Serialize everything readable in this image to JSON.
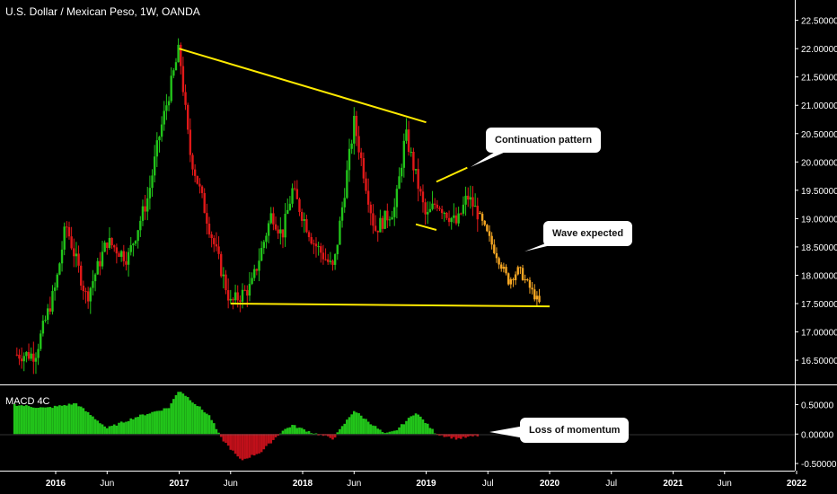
{
  "chart_data": [
    {
      "type": "candlestick",
      "title": "U.S. Dollar / Mexican Peso, 1W, OANDA",
      "y_ticks": [
        "22.50000",
        "22.00000",
        "21.50000",
        "21.00000",
        "20.50000",
        "20.00000",
        "19.50000",
        "19.00000",
        "18.50000",
        "18.00000",
        "17.50000",
        "17.00000",
        "16.50000"
      ],
      "ylim": [
        16.2,
        22.7
      ],
      "x_ticks": [
        "2016",
        "Jun",
        "2017",
        "Jun",
        "2018",
        "Jun",
        "2019",
        "Jul",
        "2020",
        "Jul",
        "2021",
        "Jun",
        "2022"
      ],
      "price_path": [
        [
          "2015-09",
          16.6
        ],
        [
          "2015-11",
          16.6
        ],
        [
          "2016-01",
          17.8
        ],
        [
          "2016-02",
          18.9
        ],
        [
          "2016-04",
          17.6
        ],
        [
          "2016-06",
          18.6
        ],
        [
          "2016-08",
          18.3
        ],
        [
          "2016-10",
          19.4
        ],
        [
          "2016-11",
          20.4
        ],
        [
          "2017-01",
          22.0
        ],
        [
          "2017-02",
          20.2
        ],
        [
          "2017-04",
          18.8
        ],
        [
          "2017-06",
          17.5
        ],
        [
          "2017-08",
          17.8
        ],
        [
          "2017-10",
          19.1
        ],
        [
          "2017-11",
          18.7
        ],
        [
          "2017-12",
          19.5
        ],
        [
          "2018-02",
          18.6
        ],
        [
          "2018-04",
          18.1
        ],
        [
          "2018-06",
          20.7
        ],
        [
          "2018-08",
          18.8
        ],
        [
          "2018-10",
          19.2
        ],
        [
          "2018-11",
          20.5
        ],
        [
          "2019-01",
          19.0
        ],
        [
          "2019-02",
          19.3
        ],
        [
          "2019-04",
          18.9
        ],
        [
          "2019-05",
          19.4
        ],
        [
          "2019-06",
          19.1
        ]
      ],
      "projection": [
        [
          "2019-06",
          19.1
        ],
        [
          "2019-07",
          18.7
        ],
        [
          "2019-08",
          18.3
        ],
        [
          "2019-09",
          17.9
        ],
        [
          "2019-10",
          18.1
        ],
        [
          "2019-11",
          17.8
        ],
        [
          "2019-12",
          17.5
        ]
      ],
      "colors": {
        "up": "#22c41a",
        "down": "#e01818",
        "projection": "#f5a623",
        "trendline": "#ffea00"
      },
      "trendlines": [
        {
          "from": [
            "2017-01",
            22.0
          ],
          "to": [
            "2019-01",
            20.7
          ]
        },
        {
          "from": [
            "2017-06",
            17.5
          ],
          "to": [
            "2020-01",
            17.45
          ]
        },
        {
          "from": [
            "2018-12",
            18.9
          ],
          "to": [
            "2019-02",
            18.8
          ]
        },
        {
          "from": [
            "2019-02",
            19.65
          ],
          "to": [
            "2019-05",
            19.9
          ]
        }
      ]
    },
    {
      "type": "histogram",
      "title": "MACD 4C",
      "y_ticks": [
        "0.50000",
        "0.00000",
        "-0.50000"
      ],
      "ylim": [
        -0.56,
        0.72
      ],
      "colors": {
        "positive": "#22c41a",
        "negative": "#c0101a"
      },
      "path": [
        [
          "2015-09",
          0.5
        ],
        [
          "2015-12",
          0.44
        ],
        [
          "2016-03",
          0.52
        ],
        [
          "2016-06",
          0.1
        ],
        [
          "2016-09",
          0.3
        ],
        [
          "2016-12",
          0.45
        ],
        [
          "2017-01",
          0.75
        ],
        [
          "2017-04",
          0.3
        ],
        [
          "2017-05",
          -0.05
        ],
        [
          "2017-07",
          -0.45
        ],
        [
          "2017-09",
          -0.3
        ],
        [
          "2017-11",
          0.05
        ],
        [
          "2017-12",
          0.15
        ],
        [
          "2018-02",
          0.02
        ],
        [
          "2018-04",
          -0.08
        ],
        [
          "2018-06",
          0.4
        ],
        [
          "2018-09",
          0.0
        ],
        [
          "2018-10",
          0.05
        ],
        [
          "2018-12",
          0.37
        ],
        [
          "2019-02",
          0.0
        ],
        [
          "2019-04",
          -0.08
        ],
        [
          "2019-06",
          -0.03
        ]
      ]
    }
  ],
  "annotations": {
    "continuation": "Continuation pattern",
    "wave": "Wave expected",
    "momentum": "Loss of momentum"
  }
}
